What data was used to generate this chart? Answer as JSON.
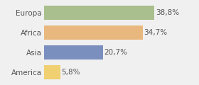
{
  "categories": [
    "Europa",
    "Africa",
    "Asia",
    "America"
  ],
  "values": [
    38.8,
    34.7,
    20.7,
    5.8
  ],
  "labels": [
    "38,8%",
    "34,7%",
    "20,7%",
    "5,8%"
  ],
  "bar_colors": [
    "#a9bf8e",
    "#e8b87e",
    "#7b8fbf",
    "#f0d070"
  ],
  "background_color": "#f0f0f0",
  "xlim": [
    0,
    46
  ],
  "bar_height": 0.72,
  "label_fontsize": 7.5,
  "tick_fontsize": 7.5,
  "text_color": "#555555"
}
